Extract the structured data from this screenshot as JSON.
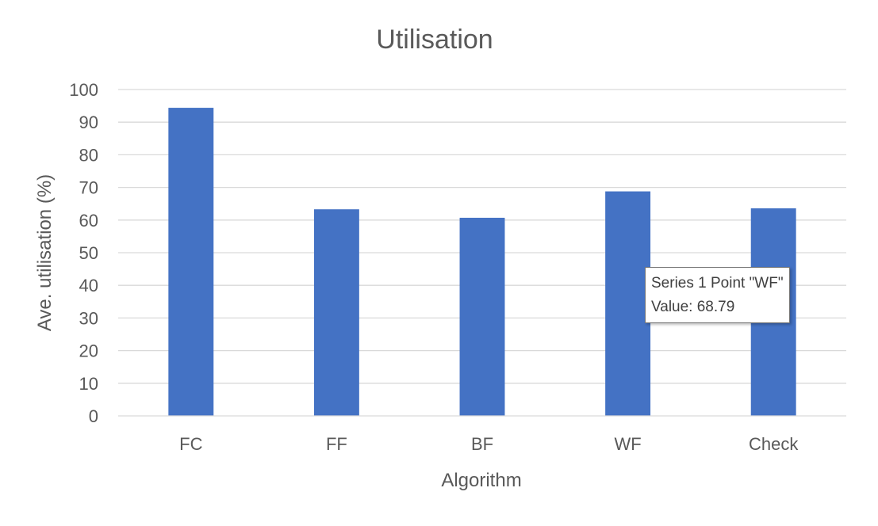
{
  "chart_data": {
    "type": "bar",
    "title": "Utilisation",
    "xlabel": "Algorithm",
    "ylabel": "Ave. utilisation (%)",
    "categories": [
      "FC",
      "FF",
      "BF",
      "WF",
      "Check"
    ],
    "series": [
      {
        "values": [
          94.4,
          63.3,
          60.7,
          68.79,
          63.6
        ]
      }
    ],
    "ylim": [
      0,
      100
    ],
    "yticks": [
      0,
      10,
      20,
      30,
      40,
      50,
      60,
      70,
      80,
      90,
      100
    ],
    "grid": true,
    "bar_color": "#4472c4"
  },
  "tooltip": {
    "line1": "Series 1 Point \"WF\"",
    "line2": "Value: 68.79"
  }
}
